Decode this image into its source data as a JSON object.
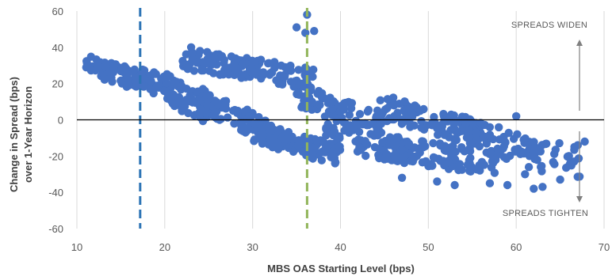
{
  "chart_data": {
    "type": "scatter",
    "xlabel": "MBS OAS Starting Level (bps)",
    "ylabel_lines": [
      "Change in Spread (bps)",
      "over 1-Year Horizon"
    ],
    "xlim": [
      10,
      70
    ],
    "ylim": [
      -60,
      60
    ],
    "x_ticks": [
      10,
      20,
      30,
      40,
      50,
      60,
      70
    ],
    "y_ticks": [
      60,
      40,
      20,
      0,
      -20,
      -40,
      -60
    ],
    "grid": "vertical",
    "zero_line": 0,
    "reference_lines": [
      {
        "x": 17.2,
        "color": "#2E75B6",
        "style": "dashed"
      },
      {
        "x": 36.2,
        "color": "#92B55A",
        "style": "dashed"
      }
    ],
    "annotations": {
      "widen": "SPREADS WIDEN",
      "tighten": "SPREADS TIGHTEN"
    },
    "colors": {
      "points": "#4472C4",
      "grid": "#D9D9D9",
      "axis": "#000000",
      "arrow": "#808080"
    },
    "series": [
      {
        "bands": [
          {
            "x0": 11,
            "x1": 18,
            "y0": 31,
            "y1": 20,
            "spread": 11,
            "n": 70
          },
          {
            "x0": 17,
            "x1": 22,
            "y0": 24,
            "y1": 14,
            "spread": 12,
            "n": 40
          },
          {
            "x0": 20,
            "x1": 26,
            "y0": 18,
            "y1": 2,
            "spread": 16,
            "n": 70
          },
          {
            "x0": 22,
            "x1": 30,
            "y0": 34,
            "y1": 28,
            "spread": 12,
            "n": 70
          },
          {
            "x0": 28,
            "x1": 37,
            "y0": 30,
            "y1": 22,
            "spread": 12,
            "n": 80
          },
          {
            "x0": 24,
            "x1": 34,
            "y0": 12,
            "y1": -12,
            "spread": 14,
            "n": 90
          },
          {
            "x0": 30,
            "x1": 40,
            "y0": -6,
            "y1": -20,
            "spread": 12,
            "n": 100
          },
          {
            "x0": 35,
            "x1": 45,
            "y0": 14,
            "y1": -4,
            "spread": 14,
            "n": 90
          },
          {
            "x0": 38,
            "x1": 48,
            "y0": -8,
            "y1": -18,
            "spread": 14,
            "n": 90
          },
          {
            "x0": 44,
            "x1": 56,
            "y0": 8,
            "y1": -8,
            "spread": 14,
            "n": 110
          },
          {
            "x0": 46,
            "x1": 58,
            "y0": -16,
            "y1": -24,
            "spread": 14,
            "n": 100
          },
          {
            "x0": 54,
            "x1": 63,
            "y0": -4,
            "y1": -22,
            "spread": 16,
            "n": 70
          },
          {
            "x0": 60,
            "x1": 68,
            "y0": -10,
            "y1": -26,
            "spread": 18,
            "n": 30
          }
        ],
        "extra_points": [
          [
            36.2,
            58
          ],
          [
            35,
            51
          ],
          [
            36,
            48
          ],
          [
            37,
            49
          ],
          [
            23,
            40
          ],
          [
            24,
            38
          ],
          [
            60,
            2
          ],
          [
            62,
            -38
          ],
          [
            63,
            -37
          ],
          [
            65,
            -33
          ],
          [
            66,
            -20
          ],
          [
            67,
            -14
          ],
          [
            67.8,
            -12
          ],
          [
            47,
            -32
          ],
          [
            51,
            -34
          ],
          [
            53,
            -36
          ],
          [
            57,
            -35
          ],
          [
            59,
            -36
          ],
          [
            61,
            -30
          ]
        ]
      }
    ]
  }
}
